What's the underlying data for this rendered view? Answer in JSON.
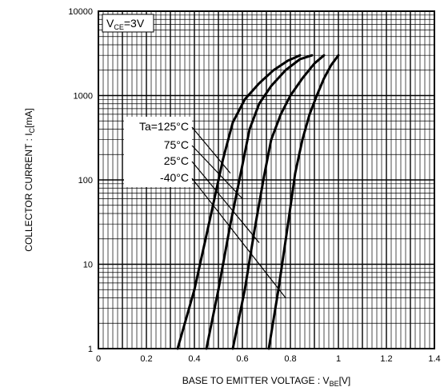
{
  "chart_data": {
    "type": "line",
    "yscale": "log",
    "xlim": [
      0,
      1.4
    ],
    "ylim": [
      1,
      10000
    ],
    "xticks": [
      "0",
      "0.2",
      "0.4",
      "0.6",
      "0.8",
      "1",
      "1.2",
      "1.4"
    ],
    "yticks": [
      "1",
      "10",
      "100",
      "1000",
      "10000"
    ],
    "xlabel": {
      "main": "BASE TO EMITTER VOLTAGE : V",
      "sub": "BE",
      "tail": "[V]"
    },
    "ylabel": {
      "main": "COLLECTOR CURRENT : I",
      "sub": "C",
      "tail": "[mA]"
    },
    "condition": {
      "main": "V",
      "sub": "CE",
      "tail": "=3V"
    },
    "grid": true,
    "series": [
      {
        "name": "Ta=125°C",
        "x": [
          0.33,
          0.4,
          0.47,
          0.52,
          0.56,
          0.61,
          0.67,
          0.73,
          0.79,
          0.84
        ],
        "y": [
          1,
          5,
          40,
          180,
          480,
          900,
          1400,
          2000,
          2600,
          3000
        ]
      },
      {
        "name": "75°C",
        "x": [
          0.45,
          0.5,
          0.55,
          0.6,
          0.63,
          0.67,
          0.72,
          0.78,
          0.84,
          0.89
        ],
        "y": [
          1,
          5,
          30,
          150,
          400,
          800,
          1300,
          2000,
          2700,
          3000
        ]
      },
      {
        "name": "25°C",
        "x": [
          0.56,
          0.61,
          0.65,
          0.69,
          0.72,
          0.76,
          0.8,
          0.85,
          0.9,
          0.94
        ],
        "y": [
          1,
          5,
          25,
          110,
          300,
          600,
          1000,
          1600,
          2400,
          3000
        ]
      },
      {
        "name": "-40°C",
        "x": [
          0.71,
          0.75,
          0.79,
          0.82,
          0.85,
          0.88,
          0.91,
          0.94,
          0.97,
          1.0
        ],
        "y": [
          1,
          5,
          30,
          120,
          300,
          600,
          1000,
          1600,
          2300,
          3000
        ]
      }
    ],
    "annotation_lines": [
      {
        "label": "Ta=125°C",
        "to": [
          0.55,
          120
        ]
      },
      {
        "label": "75°C",
        "to": [
          0.6,
          60
        ]
      },
      {
        "label": "25°C",
        "to": [
          0.67,
          18
        ]
      },
      {
        "label": "-40°C",
        "to": [
          0.78,
          4
        ]
      }
    ]
  }
}
